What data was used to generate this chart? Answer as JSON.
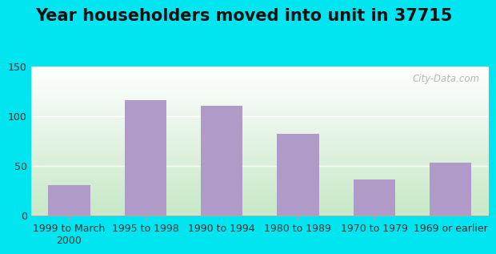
{
  "title": "Year householders moved into unit in 37715",
  "categories": [
    "1999 to March\n2000",
    "1995 to 1998",
    "1990 to 1994",
    "1980 to 1989",
    "1970 to 1979",
    "1969 or earlier"
  ],
  "values": [
    30,
    116,
    110,
    82,
    36,
    53
  ],
  "bar_color": "#b09ac8",
  "background_outer": "#00e5f0",
  "background_inner_top_right": "#f0f8f0",
  "background_inner_bottom_left": "#c8e8c8",
  "ylim": [
    0,
    150
  ],
  "yticks": [
    0,
    50,
    100,
    150
  ],
  "watermark": "City-Data.com",
  "title_fontsize": 15,
  "tick_fontsize": 9
}
